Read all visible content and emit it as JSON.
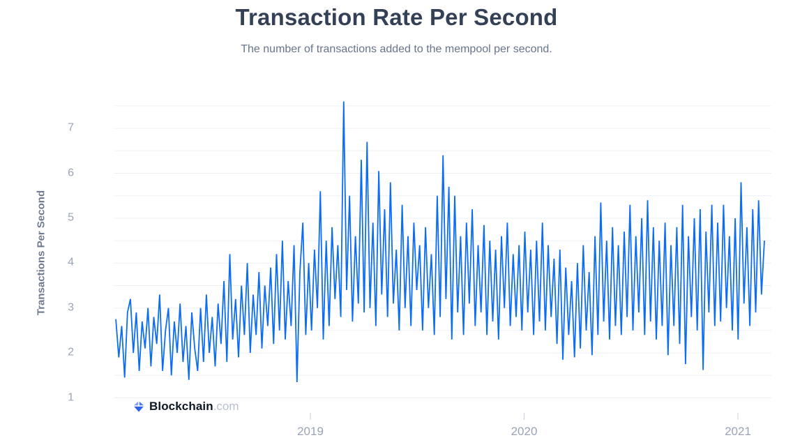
{
  "header": {
    "title": "Transaction Rate Per Second",
    "subtitle": "The number of transactions added to the mempool per second."
  },
  "watermark": {
    "icon": "blockchain-cube-icon",
    "brand": "Blockchain",
    "suffix": ".com"
  },
  "colors": {
    "line": "#0C6CF2",
    "grid": "#EEF0F6",
    "tick_mark": "#C9CFDA",
    "tick_label": "#9AA3B5",
    "axis_title": "#6F7A8E",
    "title": "#344055",
    "subtitle": "#67748A",
    "logo_light": "#7FA3F2",
    "logo_mid": "#4A7BEC",
    "logo_deep": "#2D63E8"
  },
  "chart_data": {
    "type": "line",
    "title": "Transaction Rate Per Second",
    "subtitle": "The number of transactions added to the mempool per second.",
    "xlabel": "",
    "ylabel": "Transactions Per Second",
    "series_name": "Transactions Per Second",
    "legend": "none",
    "grid": "horizontal minor gridlines every 0.5 units, no vertical gridlines",
    "x_tick_labels": [
      "2019",
      "2020",
      "2021"
    ],
    "x_tick_values": [
      2019,
      2020,
      2021
    ],
    "y_ticks": [
      1,
      2,
      3,
      4,
      5,
      6,
      7
    ],
    "ylim": [
      1,
      7.75
    ],
    "xlim": [
      2018.08,
      2021.16
    ],
    "x_unit": "decimal year (daily-frequency noisy series sampled ~every 5 days)",
    "y_unit": "transactions per second",
    "x_start": 2018.09,
    "x_step": 0.013667,
    "y": [
      2.75,
      1.9,
      2.6,
      1.45,
      2.9,
      3.2,
      2.0,
      2.9,
      1.6,
      2.7,
      2.1,
      3.0,
      1.7,
      2.8,
      2.2,
      3.3,
      1.6,
      2.5,
      3.0,
      1.5,
      2.7,
      2.0,
      3.1,
      1.8,
      2.6,
      1.4,
      2.9,
      2.1,
      1.6,
      3.0,
      1.8,
      3.3,
      2.0,
      2.8,
      1.7,
      3.1,
      2.2,
      3.6,
      1.8,
      4.2,
      2.3,
      3.2,
      1.9,
      3.5,
      2.4,
      4.0,
      2.0,
      3.3,
      2.4,
      3.8,
      2.1,
      3.5,
      2.6,
      3.9,
      2.2,
      4.2,
      2.5,
      4.5,
      2.3,
      3.6,
      2.6,
      4.4,
      1.35,
      3.8,
      4.9,
      2.4,
      4.0,
      2.5,
      4.3,
      3.0,
      5.6,
      2.3,
      4.5,
      2.6,
      4.8,
      3.2,
      4.4,
      2.8,
      7.6,
      3.4,
      5.5,
      2.7,
      4.6,
      3.1,
      6.3,
      2.9,
      6.7,
      3.0,
      4.9,
      2.6,
      6.05,
      3.3,
      5.2,
      2.8,
      5.8,
      3.1,
      4.3,
      2.5,
      5.3,
      3.0,
      4.6,
      2.6,
      4.9,
      3.4,
      4.4,
      2.5,
      4.8,
      3.0,
      4.2,
      2.4,
      5.5,
      2.8,
      6.4,
      3.2,
      5.7,
      2.3,
      5.5,
      2.9,
      4.6,
      2.4,
      4.9,
      3.1,
      5.2,
      2.6,
      4.4,
      2.9,
      4.85,
      2.4,
      4.5,
      2.7,
      4.3,
      2.3,
      4.6,
      3.0,
      4.9,
      2.6,
      4.2,
      2.8,
      4.4,
      2.5,
      4.7,
      2.9,
      4.3,
      2.4,
      4.5,
      2.7,
      4.9,
      2.5,
      4.4,
      2.8,
      4.1,
      2.2,
      4.3,
      1.85,
      3.9,
      2.4,
      3.6,
      1.9,
      4.0,
      2.1,
      4.4,
      2.5,
      3.8,
      1.95,
      4.6,
      2.4,
      5.35,
      2.7,
      4.5,
      2.3,
      4.8,
      2.6,
      4.4,
      2.4,
      4.7,
      2.8,
      5.3,
      2.5,
      4.6,
      2.9,
      5.0,
      2.4,
      5.4,
      2.7,
      4.8,
      2.3,
      4.5,
      2.6,
      4.9,
      1.95,
      4.4,
      2.6,
      4.8,
      2.2,
      5.3,
      1.75,
      4.6,
      2.8,
      5.0,
      2.5,
      5.2,
      1.62,
      4.7,
      2.9,
      5.3,
      2.6,
      4.9,
      2.7,
      5.3,
      3.0,
      4.6,
      2.5,
      5.0,
      2.3,
      5.8,
      3.1,
      4.8,
      2.6,
      5.2,
      2.9,
      5.4,
      3.3,
      4.5
    ]
  }
}
